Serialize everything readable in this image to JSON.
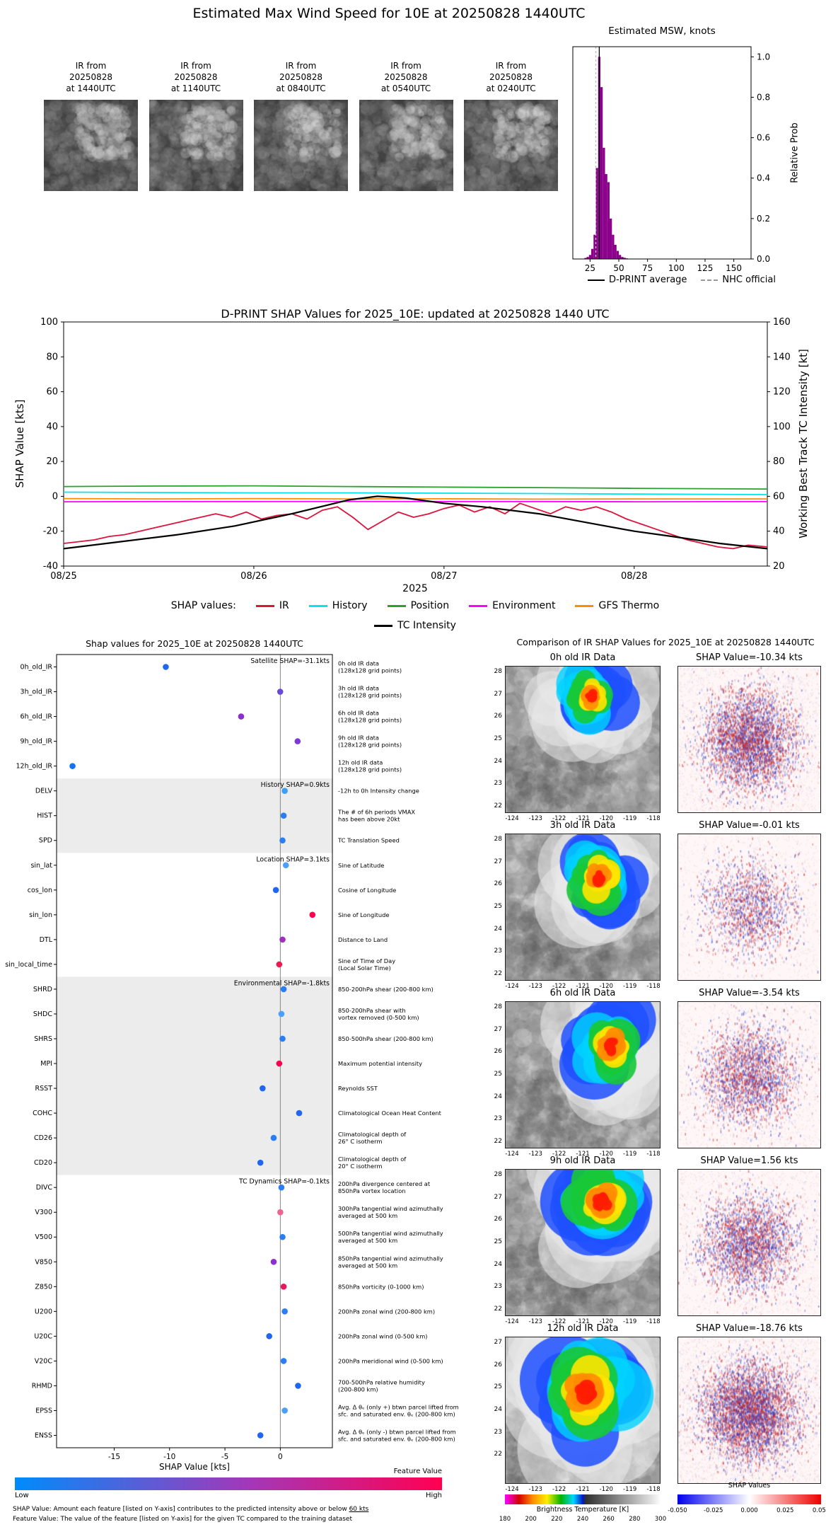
{
  "figure_title": "Estimated Max Wind Speed for 10E at 20250828 1440UTC",
  "colors": {
    "hist_bar": "#8B008B",
    "ir": "#DC143C",
    "history": "#00E5EE",
    "position": "#2ca02c",
    "environment": "#FF00FF",
    "gfs_thermo": "#FF8C00",
    "tc_intensity": "#000000",
    "shap_low": "#008bfb",
    "shap_mid": "#a437b8",
    "shap_high": "#ff0051"
  },
  "thumbnails": [
    {
      "lines": [
        "IR from",
        "20250828",
        "at 1440UTC"
      ]
    },
    {
      "lines": [
        "IR from",
        "20250828",
        "at 1140UTC"
      ]
    },
    {
      "lines": [
        "IR from",
        "20250828",
        "at 0840UTC"
      ]
    },
    {
      "lines": [
        "IR from",
        "20250828",
        "at 0540UTC"
      ]
    },
    {
      "lines": [
        "IR from",
        "20250828",
        "at 0240UTC"
      ]
    }
  ],
  "footnotes": [
    {
      "text": "SHAP Value: Amount each feature [listed on Y-axis] contributes to the predicted intensity above or below ",
      "underline": "60 kts"
    },
    {
      "text": "Feature Value: The value of the feature [listed on Y-axis] for the given TC compared to the training dataset",
      "underline": ""
    }
  ],
  "chart_data": [
    {
      "id": "msw-histogram",
      "type": "bar",
      "title": "Estimated MSW, knots",
      "ylabel": "Relative Prob",
      "xlim": [
        10,
        165
      ],
      "ylim": [
        0,
        1.05
      ],
      "x_ticks": [
        25,
        50,
        75,
        100,
        125,
        150
      ],
      "y_ticks": [
        "0.0",
        "0.2",
        "0.4",
        "0.6",
        "0.8",
        "1.0"
      ],
      "bin_width": 2,
      "bin_centers": [
        21,
        23,
        25,
        27,
        29,
        31,
        33,
        35,
        37,
        39,
        41,
        43,
        45,
        47,
        49,
        51,
        53,
        55,
        57
      ],
      "heights": [
        0.005,
        0.01,
        0.02,
        0.05,
        0.12,
        0.45,
        1.0,
        0.85,
        0.55,
        0.42,
        0.38,
        0.2,
        0.12,
        0.07,
        0.04,
        0.02,
        0.01,
        0.006,
        0.003
      ],
      "dprint_average_kt": 33,
      "nhc_official_kt": 30,
      "legend": [
        {
          "label": "D-PRINT average",
          "swatch": "solid-black"
        },
        {
          "label": "NHC official",
          "swatch": "dashed-gray"
        }
      ]
    },
    {
      "id": "shap-timeseries",
      "type": "line",
      "title": "D-PRINT SHAP Values for 2025_10E: updated at 20250828 1440 UTC",
      "ylabel_left": "SHAP Value [kts]",
      "ylabel_right": "Working Best Track TC Intensity [kt]",
      "xlabel": "2025",
      "legend_label": "SHAP values:",
      "xlim_days": [
        0,
        3.7
      ],
      "ylim_left": [
        -40,
        100
      ],
      "ylim_right": [
        20,
        160
      ],
      "y_ticks_left": [
        -40,
        -20,
        0,
        20,
        40,
        60,
        80,
        100
      ],
      "y_ticks_right": [
        20,
        40,
        60,
        80,
        100,
        120,
        140,
        160
      ],
      "x_ticks": [
        {
          "t": 0,
          "label": "08/25"
        },
        {
          "t": 1,
          "label": "08/26"
        },
        {
          "t": 2,
          "label": "08/27"
        },
        {
          "t": 3,
          "label": "08/28"
        }
      ],
      "series": [
        {
          "name": "IR",
          "color_key": "ir",
          "axis": "left",
          "x": [
            0,
            0.08,
            0.16,
            0.24,
            0.32,
            0.4,
            0.48,
            0.56,
            0.64,
            0.72,
            0.8,
            0.88,
            0.96,
            1.04,
            1.12,
            1.2,
            1.28,
            1.36,
            1.44,
            1.52,
            1.6,
            1.68,
            1.76,
            1.84,
            1.92,
            2,
            2.08,
            2.16,
            2.24,
            2.32,
            2.4,
            2.48,
            2.56,
            2.64,
            2.72,
            2.8,
            2.88,
            2.96,
            3.04,
            3.12,
            3.2,
            3.28,
            3.36,
            3.44,
            3.52,
            3.6,
            3.7
          ],
          "y": [
            -27,
            -26,
            -25,
            -23,
            -22,
            -20,
            -18,
            -16,
            -14,
            -12,
            -10,
            -12,
            -9,
            -13,
            -11,
            -10,
            -13,
            -8,
            -6,
            -12,
            -19,
            -14,
            -9,
            -12,
            -10,
            -7,
            -5,
            -9,
            -6,
            -10,
            -4,
            -7,
            -10,
            -6,
            -8,
            -6,
            -9,
            -13,
            -16,
            -19,
            -22,
            -25,
            -27,
            -29,
            -30,
            -28,
            -29
          ]
        },
        {
          "name": "History",
          "color_key": "history",
          "axis": "left",
          "x": [
            0,
            0.5,
            1,
            1.5,
            2,
            2.5,
            3,
            3.7
          ],
          "y": [
            2.4,
            2.2,
            2.0,
            2.0,
            1.8,
            1.6,
            1.3,
            1.0
          ]
        },
        {
          "name": "Position",
          "color_key": "position",
          "axis": "left",
          "x": [
            0,
            0.5,
            1,
            1.5,
            2,
            2.5,
            3,
            3.7
          ],
          "y": [
            5.6,
            5.9,
            6.0,
            5.6,
            5.3,
            5.0,
            4.6,
            4.2
          ]
        },
        {
          "name": "Environment",
          "color_key": "environment",
          "axis": "left",
          "x": [
            0,
            0.5,
            1,
            1.5,
            2,
            2.5,
            3,
            3.7
          ],
          "y": [
            -3.1,
            -3.0,
            -3.0,
            -2.9,
            -3.0,
            -3.0,
            -3.1,
            -3.0
          ]
        },
        {
          "name": "GFS Thermo",
          "color_key": "gfs_thermo",
          "axis": "left",
          "x": [
            0,
            0.5,
            1,
            1.5,
            2,
            2.5,
            3,
            3.7
          ],
          "y": [
            -1.3,
            -1.5,
            -1.3,
            -1.5,
            -1.4,
            -1.6,
            -1.5,
            -1.5
          ]
        },
        {
          "name": "TC Intensity",
          "color_key": "tc_intensity",
          "axis": "right",
          "x": [
            0,
            0.3,
            0.6,
            0.9,
            1.2,
            1.5,
            1.65,
            1.8,
            2.0,
            2.2,
            2.5,
            2.8,
            3.0,
            3.2,
            3.45,
            3.7
          ],
          "y": [
            30,
            34,
            38,
            43,
            50,
            58,
            60,
            59,
            56,
            54,
            50,
            44,
            40,
            37,
            33,
            30
          ]
        }
      ]
    },
    {
      "id": "shap-dotplot",
      "type": "scatter",
      "title": "Shap values for 2025_10E at 20250828 1440UTC",
      "xlabel": "SHAP Value [kts]",
      "xlim": [
        -20.2,
        4.7
      ],
      "x_ticks": [
        -15,
        -10,
        -5,
        0
      ],
      "colorbar": {
        "title": "Feature Value",
        "low_label": "Low",
        "high_label": "High"
      },
      "sections": [
        {
          "label": "Satellite SHAP=-31.1kts",
          "start_row": 0,
          "n_rows": 5,
          "shaded": false
        },
        {
          "label": "History SHAP=0.9kts",
          "start_row": 5,
          "n_rows": 3,
          "shaded": true
        },
        {
          "label": "Location SHAP=3.1kts",
          "start_row": 8,
          "n_rows": 5,
          "shaded": false
        },
        {
          "label": "Environmental SHAP=-1.8kts",
          "start_row": 13,
          "n_rows": 8,
          "shaded": true
        },
        {
          "label": "TC Dynamics SHAP=-0.1kts",
          "start_row": 21,
          "n_rows": 11,
          "shaded": false
        }
      ],
      "features": [
        {
          "name": "0h_old_IR",
          "shap": -10.34,
          "dot_color": "#2066f0",
          "desc": "0h old IR data\n(128x128 grid points)"
        },
        {
          "name": "3h_old_IR",
          "shap": -0.01,
          "dot_color": "#6a48d8",
          "desc": "3h old IR data\n(128x128 grid points)"
        },
        {
          "name": "6h_old_IR",
          "shap": -3.54,
          "dot_color": "#8c2fd0",
          "desc": "6h old IR data\n(128x128 grid points)"
        },
        {
          "name": "9h_old_IR",
          "shap": 1.56,
          "dot_color": "#7a3ad8",
          "desc": "9h old IR data\n(128x128 grid points)"
        },
        {
          "name": "12h_old_IR",
          "shap": -18.76,
          "dot_color": "#1470f5",
          "desc": "12h old IR data\n(128x128 grid points)"
        },
        {
          "name": "DELV",
          "shap": 0.4,
          "dot_color": "#38a0fa",
          "desc": "-12h to 0h Intensity change"
        },
        {
          "name": "HIST",
          "shap": 0.3,
          "dot_color": "#2b7df5",
          "desc": "The # of 6h periods VMAX\nhas been above 20kt"
        },
        {
          "name": "SPD",
          "shap": 0.2,
          "dot_color": "#2b7df5",
          "desc": "TC Translation Speed"
        },
        {
          "name": "sin_lat",
          "shap": 0.5,
          "dot_color": "#4aa0fa",
          "desc": "Sine of Latitude"
        },
        {
          "name": "cos_lon",
          "shap": -0.4,
          "dot_color": "#2066f0",
          "desc": "Cosine of Longitude"
        },
        {
          "name": "sin_lon",
          "shap": 2.9,
          "dot_color": "#ff0051",
          "desc": "Sine of Longitude"
        },
        {
          "name": "DTL",
          "shap": 0.2,
          "dot_color": "#a02fc0",
          "desc": "Distance to Land"
        },
        {
          "name": "sin_local_time",
          "shap": -0.1,
          "dot_color": "#f01a50",
          "desc": "Sine of Time of Day\n(Local Solar Time)"
        },
        {
          "name": "SHRD",
          "shap": 0.3,
          "dot_color": "#2b7df5",
          "desc": "850-200hPa shear (200-800 km)"
        },
        {
          "name": "SHDC",
          "shap": 0.1,
          "dot_color": "#4aa0fa",
          "desc": "850-200hPa shear with\nvortex removed (0-500 km)"
        },
        {
          "name": "SHRS",
          "shap": 0.2,
          "dot_color": "#2b7df5",
          "desc": "850-500hPa shear (200-800 km)"
        },
        {
          "name": "MPI",
          "shap": -0.1,
          "dot_color": "#ff0051",
          "desc": "Maximum potential intensity"
        },
        {
          "name": "RSST",
          "shap": -1.6,
          "dot_color": "#2066f0",
          "desc": "Reynolds SST"
        },
        {
          "name": "COHC",
          "shap": 1.7,
          "dot_color": "#2066f0",
          "desc": "Climatological Ocean Heat Content"
        },
        {
          "name": "CD26",
          "shap": -0.6,
          "dot_color": "#2b7df5",
          "desc": "Climatological depth of\n26° C isotherm"
        },
        {
          "name": "CD20",
          "shap": -1.8,
          "dot_color": "#2066f0",
          "desc": "Climatological depth of\n20° C isotherm"
        },
        {
          "name": "DIVC",
          "shap": 0.1,
          "dot_color": "#2b7df5",
          "desc": "200hPa divergence centered at\n850hPa vortex location"
        },
        {
          "name": "V300",
          "shap": 0.0,
          "dot_color": "#f06292",
          "desc": "300hPa tangential wind azimuthally\naveraged at 500 km"
        },
        {
          "name": "V500",
          "shap": 0.2,
          "dot_color": "#2b7df5",
          "desc": "500hPa tangential wind azimuthally\naveraged at 500 km"
        },
        {
          "name": "V850",
          "shap": -0.6,
          "dot_color": "#8c2fd0",
          "desc": "850hPa tangential wind azimuthally\naveraged at 500 km"
        },
        {
          "name": "Z850",
          "shap": 0.3,
          "dot_color": "#e8175d",
          "desc": "850hPa vorticity (0-1000 km)"
        },
        {
          "name": "U200",
          "shap": 0.4,
          "dot_color": "#2b7df5",
          "desc": "200hPa zonal wind (200-800 km)"
        },
        {
          "name": "U20C",
          "shap": -1.0,
          "dot_color": "#2066f0",
          "desc": "200hPa zonal wind (0-500 km)"
        },
        {
          "name": "V20C",
          "shap": 0.3,
          "dot_color": "#2b7df5",
          "desc": "200hPa meridional wind (0-500 km)"
        },
        {
          "name": "RHMD",
          "shap": 1.6,
          "dot_color": "#2066f0",
          "desc": "700-500hPa relative humidity\n(200-800 km)"
        },
        {
          "name": "EPSS",
          "shap": 0.4,
          "dot_color": "#4aa0fa",
          "desc": "Avg. Δ θₑ (only +) btwn parcel lifted from\nsfc. and saturated env. θₑ (200-800 km)"
        },
        {
          "name": "ENSS",
          "shap": -1.8,
          "dot_color": "#2066f0",
          "desc": "Avg. Δ θₑ (only -) btwn parcel lifted from\nsfc. and saturated env. θₑ (200-800 km)"
        }
      ]
    },
    {
      "id": "ir-shap-comparison",
      "type": "heatmap",
      "title": "Comparison of IR SHAP Values for 2025_10E at 20250828 1440UTC",
      "bt_colorbar": {
        "label": "Brightness Temperature [K]",
        "ticks": [
          180,
          200,
          220,
          240,
          260,
          280,
          300
        ]
      },
      "shap_colorbar": {
        "label": "SHAP Values",
        "ticks": [
          "-0.050",
          "-0.025",
          "0.000",
          "0.025",
          "0.050"
        ]
      },
      "rows": [
        {
          "ir_title": "0h old IR Data",
          "shap_title": "SHAP Value=-10.34 kts",
          "y_ticks": [
            28,
            27,
            26,
            25,
            24,
            23,
            22
          ],
          "x_ticks": [
            -124,
            -123,
            -122,
            -121,
            -120,
            -119,
            -118
          ],
          "blob": {
            "cx": 0.55,
            "cy": 0.2,
            "r": 0.3
          },
          "speckle": 0.8
        },
        {
          "ir_title": "3h old IR Data",
          "shap_title": "SHAP Value=-0.01 kts",
          "y_ticks": [
            28,
            27,
            26,
            25,
            24,
            23,
            22
          ],
          "x_ticks": [
            -124,
            -123,
            -122,
            -121,
            -120,
            -119,
            -118
          ],
          "blob": {
            "cx": 0.6,
            "cy": 0.3,
            "r": 0.34
          },
          "speckle": 0.35
        },
        {
          "ir_title": "6h old IR Data",
          "shap_title": "SHAP Value=-3.54 kts",
          "y_ticks": [
            28,
            27,
            26,
            25,
            24,
            23,
            22
          ],
          "x_ticks": [
            -124,
            -123,
            -122,
            -121,
            -120,
            -119,
            -118
          ],
          "blob": {
            "cx": 0.68,
            "cy": 0.3,
            "r": 0.36
          },
          "speckle": 0.55
        },
        {
          "ir_title": "9h old IR Data",
          "shap_title": "SHAP Value=1.56 kts",
          "y_ticks": [
            28,
            27,
            26,
            25,
            24,
            23,
            22
          ],
          "x_ticks": [
            -124,
            -123,
            -122,
            -121,
            -120,
            -119,
            -118
          ],
          "blob": {
            "cx": 0.62,
            "cy": 0.22,
            "r": 0.42
          },
          "speckle": 0.6
        },
        {
          "ir_title": "12h old IR Data",
          "shap_title": "SHAP Value=-18.76 kts",
          "y_ticks": [
            27,
            26,
            25,
            24,
            23,
            22
          ],
          "x_ticks": [
            -124,
            -123,
            -122,
            -121,
            -120,
            -119,
            -118
          ],
          "blob": {
            "cx": 0.52,
            "cy": 0.38,
            "r": 0.5
          },
          "speckle": 1.0
        }
      ]
    }
  ]
}
